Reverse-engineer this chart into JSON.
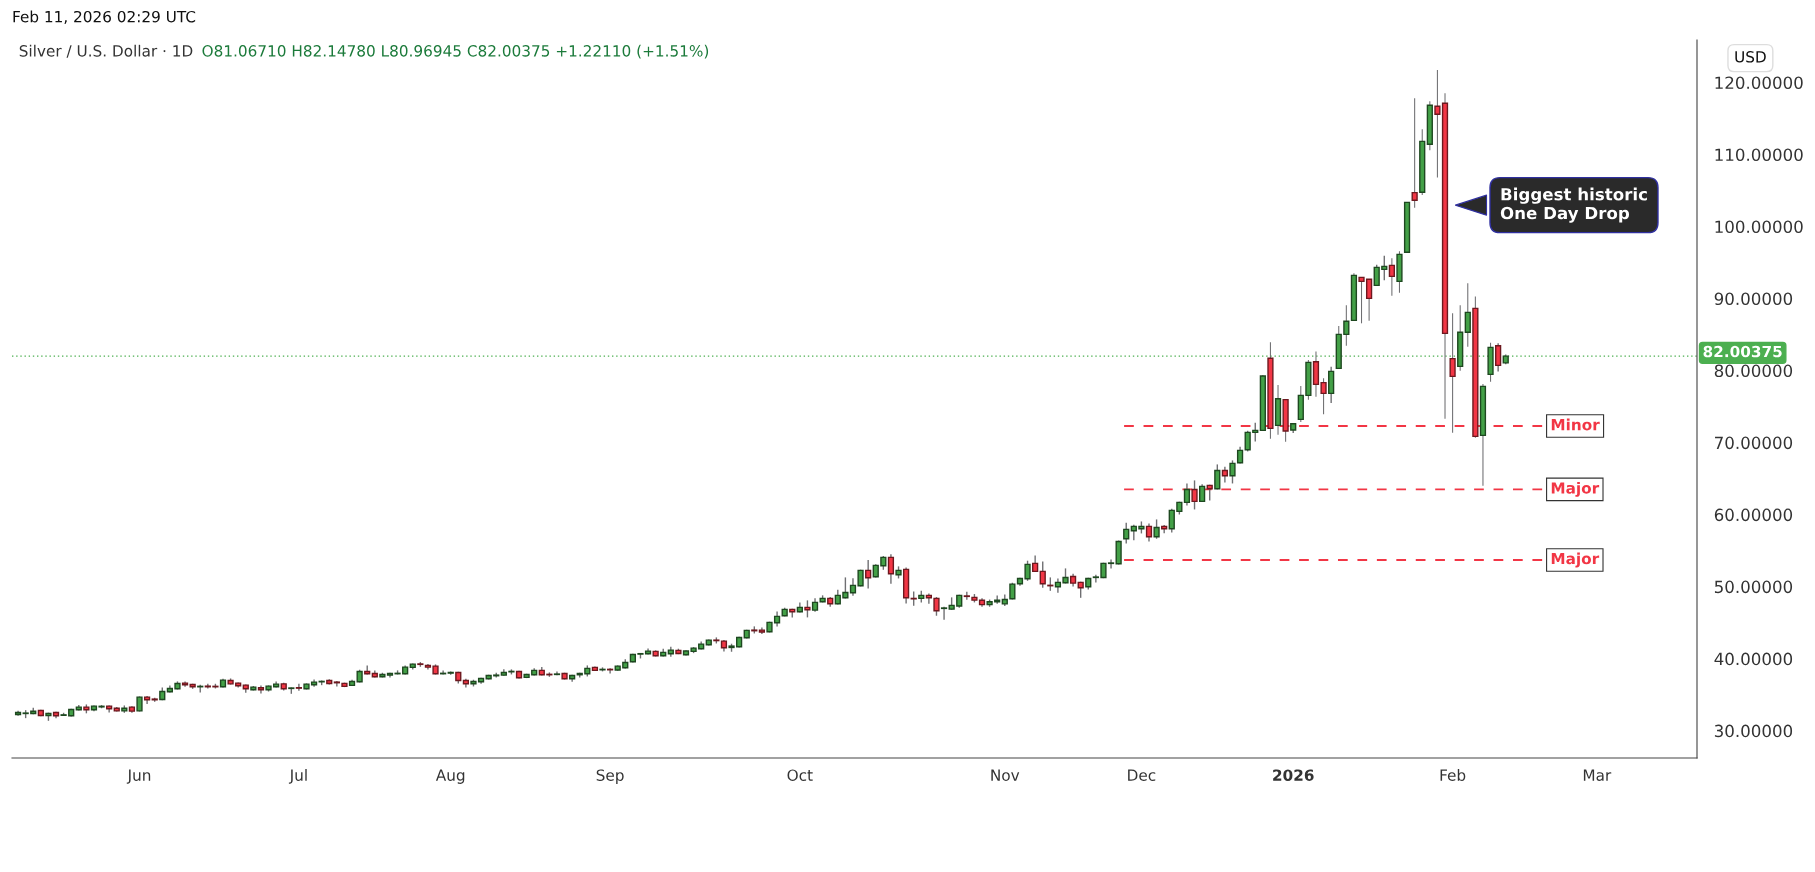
{
  "chart_data": {
    "type": "candlestick",
    "title": "Silver / U.S. Dollar · 1D",
    "subtitle": "O81.06710 H82.14780 L80.96945 C82.00375 +1.22110 (+1.51%)",
    "ylabel": "USD",
    "annotations": [
      "Feb 11, 2026 02:29 UTC",
      "Biggest historic\nOne Day Drop"
    ],
    "colors": [
      "#43a047",
      "#43a047",
      "#43a047",
      "#f23645",
      "#43a047",
      "#f23645",
      "#43a047",
      "#43a047",
      "#43a047",
      "#f23645",
      "#43a047",
      "#43a047",
      "#f23645",
      "#f23645",
      "#43a047",
      "#f23645",
      "#43a047",
      "#f23645",
      "#f23645",
      "#43a047",
      "#43a047",
      "#43a047",
      "#f23645",
      "#f23645",
      "#43a047",
      "#f23645",
      "#f23645",
      "#43a047",
      "#f23645",
      "#f23645",
      "#f23645",
      "#43a047",
      "#f23645",
      "#43a047",
      "#43a047",
      "#f23645",
      "#43a047",
      "#f23645",
      "#43a047",
      "#43a047",
      "#43a047",
      "#f23645",
      "#f23645",
      "#f23645",
      "#43a047",
      "#43a047",
      "#f23645",
      "#f23645",
      "#43a047",
      "#43a047",
      "#43a047",
      "#43a047",
      "#43a047",
      "#f23645",
      "#f23645",
      "#f23645",
      "#43a047",
      "#43a047",
      "#f23645",
      "#f23645",
      "#43a047",
      "#43a047",
      "#43a047",
      "#43a047",
      "#43a047",
      "#43a047",
      "#f23645",
      "#43a047",
      "#43a047",
      "#f23645",
      "#f23645",
      "#43a047",
      "#f23645",
      "#43a047",
      "#43a047",
      "#43a047",
      "#f23645",
      "#43a047",
      "#f23645",
      "#43a047",
      "#43a047",
      "#43a047",
      "#43a047",
      "#43a047",
      "#f23645",
      "#43a047",
      "#43a047",
      "#f23645",
      "#43a047",
      "#43a047",
      "#43a047",
      "#43a047",
      "#f23645",
      "#f23645",
      "#43a047",
      "#43a047",
      "#43a047",
      "#f23645",
      "#f23645",
      "#43a047",
      "#43a047",
      "#43a047",
      "#f23645",
      "#43a047",
      "#f23645",
      "#43a047",
      "#43a047",
      "#f23645",
      "#43a047",
      "#43a047",
      "#43a047",
      "#43a047",
      "#f23645",
      "#43a047",
      "#43a047",
      "#f23645",
      "#43a047",
      "#f23645",
      "#f23645",
      "#43a047",
      "#f23645",
      "#f23645",
      "#43a047",
      "#43a047",
      "#43a047",
      "#f23645",
      "#f23645",
      "#f23645",
      "#43a047",
      "#43a047",
      "#43a047",
      "#43a047",
      "#43a047",
      "#43a047",
      "#f23645",
      "#f23645",
      "#f23645",
      "#43a047",
      "#43a047",
      "#f23645",
      "#f23645",
      "#43a047",
      "#43a047",
      "#43a047",
      "#43a047",
      "#43a047",
      "#43a047",
      "#43a047",
      "#43a047",
      "#f23645",
      "#43a047",
      "#f23645",
      "#43a047",
      "#43a047",
      "#43a047",
      "#f23645",
      "#43a047",
      "#f23645",
      "#43a047",
      "#f23645",
      "#43a047",
      "#43a047",
      "#43a047",
      "#43a047",
      "#43a047",
      "#f23645",
      "#43a047",
      "#f23645",
      "#43a047",
      "#43a047",
      "#43a047",
      "#f23645",
      "#f23645",
      "#43a047",
      "#43a047",
      "#43a047",
      "#43a047",
      "#f23645",
      "#f23645",
      "#43a047",
      "#43a047",
      "#f23645",
      "#43a047",
      "#43a047",
      "#f23645",
      "#43a047",
      "#43a047",
      "#f23645",
      "#f23645",
      "#f23645",
      "#43a047",
      "#43a047",
      "#f23645",
      "#43a047",
      "#43a047",
      "#f23645",
      "#43a047",
      null,
      null,
      null,
      null,
      null,
      null,
      null,
      null,
      null,
      null,
      null,
      null,
      null,
      null,
      null,
      null,
      null,
      null,
      null,
      null,
      null,
      null,
      null,
      null,
      null
    ],
    "ylim": [
      26.2,
      125.9
    ],
    "yticks": [
      {
        "value": 30,
        "label": "30.00000"
      },
      {
        "value": 40,
        "label": "40.00000"
      },
      {
        "value": 50,
        "label": "50.00000"
      },
      {
        "value": 60,
        "label": "60.00000"
      },
      {
        "value": 70,
        "label": "70.00000"
      },
      {
        "value": 80,
        "label": "80.00000"
      },
      {
        "value": 90,
        "label": "90.00000"
      },
      {
        "value": 100,
        "label": "100.00000"
      },
      {
        "value": 110,
        "label": "110.00000"
      },
      {
        "value": 120,
        "label": "120.00000"
      }
    ],
    "ref_lines": [
      {
        "axis": "y",
        "value": 82.00375,
        "label": "82.00375",
        "color": "#4caf50",
        "line_style": "dotted"
      },
      {
        "axis": "y",
        "value": 72.3,
        "label": "Minor",
        "color": "#f23645",
        "line_style": "dashed"
      },
      {
        "axis": "y",
        "value": 63.5,
        "label": "Major",
        "color": "#f23645",
        "line_style": "dashed"
      },
      {
        "axis": "y",
        "value": 53.7,
        "label": "Major",
        "color": "#f23645",
        "line_style": "dashed"
      }
    ],
    "categories": [
      null,
      null,
      null,
      null,
      null,
      null,
      null,
      null,
      null,
      null,
      null,
      null,
      null,
      null,
      null,
      null,
      "Jun",
      null,
      null,
      null,
      null,
      null,
      null,
      null,
      null,
      null,
      null,
      null,
      null,
      null,
      null,
      null,
      null,
      null,
      null,
      null,
      null,
      "Jul",
      null,
      null,
      null,
      null,
      null,
      null,
      null,
      null,
      null,
      null,
      null,
      null,
      null,
      null,
      null,
      null,
      null,
      null,
      null,
      "Aug",
      null,
      null,
      null,
      null,
      null,
      null,
      null,
      null,
      null,
      null,
      null,
      null,
      null,
      null,
      null,
      null,
      null,
      null,
      null,
      null,
      "Sep",
      null,
      null,
      null,
      null,
      null,
      null,
      null,
      null,
      null,
      null,
      null,
      null,
      null,
      null,
      null,
      null,
      null,
      null,
      null,
      null,
      null,
      null,
      null,
      null,
      "Oct",
      null,
      null,
      null,
      null,
      null,
      null,
      null,
      null,
      null,
      null,
      null,
      null,
      null,
      null,
      null,
      null,
      null,
      null,
      null,
      null,
      null,
      null,
      null,
      null,
      null,
      null,
      "Nov",
      null,
      null,
      null,
      null,
      null,
      null,
      null,
      null,
      null,
      null,
      null,
      null,
      null,
      null,
      null,
      null,
      null,
      "Dec",
      null,
      null,
      null,
      null,
      null,
      null,
      null,
      null,
      null,
      null,
      null,
      null,
      null,
      null,
      null,
      null,
      null,
      null,
      null,
      "2026",
      null,
      null,
      null,
      null,
      null,
      null,
      null,
      null,
      null,
      null,
      null,
      null,
      null,
      null,
      null,
      null,
      null,
      null,
      null,
      null,
      "Feb",
      null,
      null,
      null,
      null,
      null,
      null,
      null,
      null,
      null,
      null,
      null,
      null,
      null,
      null,
      null,
      null,
      null,
      null,
      "Mar",
      null,
      null,
      null,
      null,
      null,
      null,
      null,
      null,
      null,
      null,
      null,
      null,
      null
    ],
    "ohlc": [
      [
        32.24,
        32.66,
        32.15,
        32.52
      ],
      [
        32.38,
        32.75,
        31.83,
        32.4
      ],
      [
        32.38,
        33.08,
        32.38,
        32.7
      ],
      [
        32.8,
        32.8,
        32.1,
        32.1
      ],
      [
        32.1,
        32.4,
        31.46,
        32.4
      ],
      [
        32.52,
        32.52,
        31.83,
        32.06
      ],
      [
        32.13,
        32.38,
        32.13,
        32.17
      ],
      [
        32.06,
        32.94,
        32.06,
        32.94
      ],
      [
        32.9,
        33.45,
        32.9,
        33.27
      ],
      [
        33.27,
        33.54,
        32.5,
        32.9
      ],
      [
        32.9,
        33.4,
        32.8,
        33.4
      ],
      [
        33.3,
        33.45,
        33.2,
        33.38
      ],
      [
        33.4,
        33.4,
        32.61,
        33.03
      ],
      [
        33.1,
        33.2,
        32.75,
        32.75
      ],
      [
        32.75,
        33.4,
        32.57,
        33.1
      ],
      [
        33.27,
        33.3,
        32.57,
        32.71
      ],
      [
        32.75,
        34.65,
        32.75,
        34.65
      ],
      [
        34.65,
        34.7,
        33.8,
        34.28
      ],
      [
        34.38,
        34.47,
        34.1,
        34.28
      ],
      [
        34.33,
        35.9,
        34.33,
        35.44
      ],
      [
        35.39,
        36.18,
        35.39,
        35.86
      ],
      [
        35.81,
        36.74,
        35.81,
        36.55
      ],
      [
        36.6,
        36.74,
        36.18,
        36.37
      ],
      [
        36.41,
        36.41,
        35.9,
        36.09
      ],
      [
        36.09,
        36.28,
        35.39,
        36.15
      ],
      [
        36.18,
        36.41,
        35.95,
        36.09
      ],
      [
        36.15,
        36.41,
        35.95,
        36.09
      ],
      [
        36.09,
        37.1,
        36.09,
        37.01
      ],
      [
        36.97,
        37.15,
        36.5,
        36.5
      ],
      [
        36.6,
        36.6,
        36.09,
        36.23
      ],
      [
        36.32,
        36.32,
        35.35,
        35.81
      ],
      [
        35.67,
        36.1,
        35.67,
        36.04
      ],
      [
        35.95,
        36.18,
        35.25,
        35.67
      ],
      [
        35.67,
        36.18,
        35.53,
        36.18
      ],
      [
        36.09,
        36.74,
        36.09,
        36.46
      ],
      [
        36.5,
        36.55,
        35.67,
        35.81
      ],
      [
        35.86,
        35.9,
        35.21,
        35.9
      ],
      [
        35.95,
        36.41,
        35.62,
        35.9
      ],
      [
        35.81,
        36.46,
        35.81,
        36.46
      ],
      [
        36.37,
        37.01,
        36.18,
        36.74
      ],
      [
        36.78,
        36.87,
        36.41,
        36.83
      ],
      [
        36.97,
        37.05,
        36.5,
        36.55
      ],
      [
        36.74,
        36.8,
        36.23,
        36.65
      ],
      [
        36.56,
        36.56,
        36.14,
        36.14
      ],
      [
        36.28,
        36.97,
        36.28,
        36.83
      ],
      [
        36.79,
        38.36,
        36.79,
        38.22
      ],
      [
        38.22,
        38.96,
        37.9,
        37.9
      ],
      [
        37.94,
        38.27,
        37.48,
        37.48
      ],
      [
        37.48,
        37.94,
        37.48,
        37.8
      ],
      [
        37.71,
        37.94,
        37.48,
        37.94
      ],
      [
        37.9,
        38.27,
        37.9,
        37.94
      ],
      [
        37.9,
        38.96,
        37.9,
        38.82
      ],
      [
        38.78,
        39.24,
        38.6,
        39.24
      ],
      [
        39.24,
        39.42,
        38.96,
        39.2
      ],
      [
        39.06,
        39.15,
        38.6,
        38.82
      ],
      [
        38.96,
        39.1,
        37.9,
        37.9
      ],
      [
        37.9,
        38.27,
        37.9,
        37.94
      ],
      [
        37.99,
        38.1,
        37.85,
        38.08
      ],
      [
        38.08,
        38.08,
        36.65,
        36.97
      ],
      [
        36.97,
        37.1,
        36.09,
        36.51
      ],
      [
        36.51,
        36.97,
        36.23,
        36.83
      ],
      [
        36.79,
        37.25,
        36.6,
        37.25
      ],
      [
        37.2,
        37.66,
        37.2,
        37.66
      ],
      [
        37.62,
        37.94,
        37.48,
        37.71
      ],
      [
        37.71,
        38.41,
        37.71,
        38.08
      ],
      [
        38.17,
        38.41,
        37.9,
        38.22
      ],
      [
        38.22,
        38.22,
        37.34,
        37.34
      ],
      [
        37.39,
        37.8,
        37.39,
        37.8
      ],
      [
        37.76,
        38.55,
        37.76,
        38.36
      ],
      [
        38.36,
        38.73,
        37.76,
        37.76
      ],
      [
        37.8,
        37.99,
        37.57,
        37.76
      ],
      [
        37.8,
        38.13,
        37.8,
        37.85
      ],
      [
        37.94,
        37.94,
        37.2,
        37.2
      ],
      [
        37.2,
        37.66,
        36.88,
        37.66
      ],
      [
        37.76,
        37.94,
        37.48,
        37.94
      ],
      [
        37.9,
        38.96,
        37.62,
        38.64
      ],
      [
        38.78,
        38.82,
        38.36,
        38.36
      ],
      [
        38.45,
        38.69,
        38.32,
        38.5
      ],
      [
        38.5,
        38.55,
        38.04,
        38.45
      ],
      [
        38.41,
        38.96,
        38.41,
        38.96
      ],
      [
        38.73,
        39.8,
        38.73,
        39.47
      ],
      [
        39.56,
        40.58,
        39.56,
        40.58
      ],
      [
        40.63,
        40.68,
        40.12,
        40.68
      ],
      [
        40.68,
        41.32,
        40.68,
        41.04
      ],
      [
        41.0,
        41.05,
        40.4,
        40.4
      ],
      [
        40.4,
        41.28,
        40.4,
        40.86
      ],
      [
        40.68,
        41.55,
        40.35,
        41.18
      ],
      [
        41.14,
        41.28,
        40.72,
        40.72
      ],
      [
        40.54,
        41.05,
        40.54,
        41.05
      ],
      [
        41.0,
        41.5,
        40.86,
        41.46
      ],
      [
        41.37,
        42.29,
        41.37,
        42.02
      ],
      [
        41.93,
        42.57,
        41.93,
        42.57
      ],
      [
        42.57,
        42.85,
        42.2,
        42.5
      ],
      [
        42.43,
        42.5,
        41.09,
        41.51
      ],
      [
        41.55,
        41.97,
        41.05,
        41.74
      ],
      [
        41.65,
        42.94,
        41.65,
        42.94
      ],
      [
        42.9,
        43.92,
        42.9,
        43.92
      ],
      [
        43.96,
        44.38,
        43.59,
        43.87
      ],
      [
        43.96,
        44.24,
        43.5,
        43.69
      ],
      [
        43.73,
        45.03,
        43.73,
        45.03
      ],
      [
        44.98,
        46.46,
        44.56,
        45.86
      ],
      [
        45.96,
        46.97,
        45.96,
        46.84
      ],
      [
        46.84,
        46.84,
        45.82,
        46.51
      ],
      [
        46.51,
        47.71,
        46.51,
        47.11
      ],
      [
        47.11,
        47.99,
        45.82,
        46.79
      ],
      [
        46.74,
        48.27,
        46.6,
        47.81
      ],
      [
        47.9,
        48.69,
        47.9,
        48.36
      ],
      [
        48.36,
        48.45,
        47.3,
        47.62
      ],
      [
        47.62,
        49.47,
        47.62,
        48.78
      ],
      [
        48.45,
        51.18,
        48.45,
        49.19
      ],
      [
        49.15,
        51.05,
        48.82,
        50.17
      ],
      [
        50.12,
        52.25,
        50.12,
        52.25
      ],
      [
        52.25,
        53.59,
        49.85,
        51.23
      ],
      [
        51.37,
        52.99,
        51.37,
        52.94
      ],
      [
        52.9,
        54.15,
        52.43,
        54.06
      ],
      [
        54.06,
        54.38,
        50.49,
        51.79
      ],
      [
        51.65,
        52.71,
        51.23,
        52.25
      ],
      [
        52.39,
        52.57,
        47.76,
        48.45
      ],
      [
        48.36,
        49.24,
        47.44,
        48.3
      ],
      [
        48.36,
        49.33,
        47.9,
        48.78
      ],
      [
        48.78,
        48.96,
        47.71,
        48.45
      ],
      [
        48.36,
        48.45,
        46.05,
        46.65
      ],
      [
        46.97,
        47.11,
        45.49,
        47.02
      ],
      [
        46.88,
        48.41,
        46.88,
        47.39
      ],
      [
        47.3,
        48.78,
        47.15,
        48.78
      ],
      [
        48.69,
        49.19,
        48.27,
        48.64
      ],
      [
        48.5,
        48.87,
        47.9,
        48.12
      ],
      [
        48.1,
        48.3,
        47.3,
        47.5
      ],
      [
        47.5,
        48.1,
        47.3,
        47.9
      ],
      [
        47.9,
        48.68,
        47.7,
        48.1
      ],
      [
        47.6,
        48.82,
        47.4,
        48.2
      ],
      [
        48.31,
        50.44,
        48.31,
        50.35
      ],
      [
        50.4,
        51.13,
        50.21,
        51.13
      ],
      [
        51.09,
        53.5,
        50.9,
        53.08
      ],
      [
        53.22,
        54.23,
        52.11,
        52.11
      ],
      [
        52.11,
        53.4,
        49.93,
        50.4
      ],
      [
        50.17,
        51.18,
        49.51,
        50.12
      ],
      [
        49.98,
        51.04,
        49.23,
        50.58
      ],
      [
        50.53,
        52.43,
        50.53,
        51.27
      ],
      [
        51.41,
        51.69,
        50.12,
        50.49
      ],
      [
        50.58,
        50.58,
        48.54,
        49.84
      ],
      [
        49.98,
        51.13,
        49.7,
        51.13
      ],
      [
        51.27,
        51.55,
        50.67,
        51.32
      ],
      [
        51.27,
        53.22,
        51.27,
        53.22
      ],
      [
        53.22,
        53.68,
        52.61,
        53.27
      ],
      [
        53.17,
        56.3,
        53.17,
        56.27
      ],
      [
        56.64,
        58.77,
        56.09,
        57.94
      ],
      [
        57.76,
        58.49,
        56.55,
        58.36
      ],
      [
        58.03,
        58.95,
        57.48,
        58.36
      ],
      [
        58.36,
        58.68,
        56.37,
        56.92
      ],
      [
        56.92,
        59.23,
        56.74,
        58.21
      ],
      [
        58.36,
        58.45,
        57.52,
        58.03
      ],
      [
        58.03,
        60.71,
        57.61,
        60.58
      ],
      [
        60.44,
        61.69,
        60.11,
        61.69
      ],
      [
        61.69,
        64.23,
        61.36,
        63.49
      ],
      [
        63.49,
        64.65,
        60.81,
        61.83
      ],
      [
        61.83,
        64.1,
        61.83,
        63.91
      ],
      [
        64.05,
        64.05,
        62.06,
        63.59
      ],
      [
        63.59,
        66.87,
        63.59,
        66.13
      ],
      [
        66.13,
        66.55,
        64.56,
        65.39
      ],
      [
        65.39,
        67.43,
        64.42,
        67.11
      ],
      [
        67.2,
        69.33,
        67.2,
        68.91
      ],
      [
        69.0,
        71.54,
        68.87,
        71.41
      ],
      [
        71.41,
        72.66,
        70.26,
        71.69
      ],
      [
        71.7,
        79.38,
        71.7,
        79.24
      ],
      [
        81.7,
        83.92,
        70.54,
        71.97
      ],
      [
        72.39,
        77.99,
        71.09,
        76.09
      ],
      [
        75.96,
        75.96,
        70.12,
        71.6
      ],
      [
        71.74,
        72.62,
        71.42,
        72.62
      ],
      [
        73.22,
        77.85,
        72.85,
        76.56
      ],
      [
        76.56,
        81.46,
        75.96,
        81.14
      ],
      [
        81.23,
        82.66,
        76.37,
        78.08
      ],
      [
        78.32,
        78.92,
        73.92,
        76.83
      ],
      [
        76.83,
        80.44,
        75.59,
        79.89
      ],
      [
        80.31,
        86.19,
        80.31,
        85.03
      ],
      [
        85.03,
        89.06,
        83.45,
        86.84
      ],
      [
        86.97,
        93.5,
        86.97,
        93.22
      ],
      [
        92.94,
        92.94,
        86.56,
        92.39
      ],
      [
        92.67,
        92.67,
        86.93,
        90.03
      ],
      [
        91.83,
        94.61,
        91.83,
        94.33
      ],
      [
        94.05,
        95.86,
        92.62,
        94.47
      ],
      [
        94.61,
        95.58,
        90.4,
        93.08
      ],
      [
        92.39,
        96.56,
        90.81,
        96.14
      ],
      [
        96.42,
        103.36,
        96.42,
        103.36
      ],
      [
        104.7,
        117.8,
        102.62,
        103.64
      ],
      [
        104.75,
        113.5,
        104.38,
        111.83
      ],
      [
        111.42,
        117.39,
        110.58,
        116.83
      ],
      [
        116.7,
        121.74,
        106.79,
        115.59
      ],
      [
        117.11,
        118.5,
        73.31,
        85.17
      ],
      [
        81.65,
        87.94,
        71.37,
        79.19
      ],
      [
        80.58,
        89.06,
        79.98,
        85.31
      ],
      [
        85.31,
        92.11,
        83.31,
        88.08
      ],
      [
        88.64,
        90.3,
        70.68,
        70.86
      ],
      [
        71.0,
        78.13,
        64.01,
        77.81
      ],
      [
        79.47,
        83.87,
        78.45,
        83.22
      ],
      [
        83.45,
        83.68,
        79.98,
        80.72
      ],
      [
        81.0671,
        82.1478,
        80.96945,
        82.00375
      ],
      null,
      null,
      null,
      null,
      null,
      null,
      null,
      null,
      null,
      null,
      null,
      null,
      null,
      null,
      null,
      null,
      null,
      null,
      null,
      null,
      null,
      null,
      null,
      null,
      null
    ]
  }
}
